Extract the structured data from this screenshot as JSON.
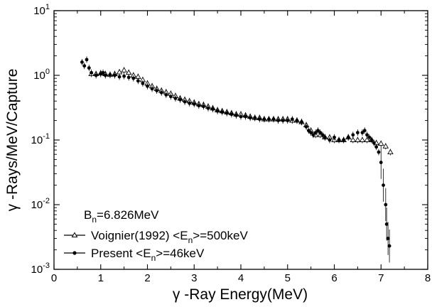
{
  "chart_data": {
    "type": "scatter",
    "xlabel": "γ -Ray Energy(MeV)",
    "ylabel": "γ -Rays/MeV/Capture",
    "xlim": [
      0,
      8
    ],
    "ylim": [
      0.001,
      10
    ],
    "yscale": "log",
    "grid": false,
    "legend_position": "bottom-left",
    "x_ticks": [
      0,
      1,
      2,
      3,
      4,
      5,
      6,
      7,
      8
    ],
    "x_tick_labels": [
      "0",
      "1",
      "2",
      "3",
      "4",
      "5",
      "6",
      "7",
      "8"
    ],
    "y_ticks": [
      0.001,
      0.01,
      0.1,
      1,
      10
    ],
    "y_tick_bases": [
      "10",
      "10",
      "10",
      "10",
      "10"
    ],
    "y_tick_exps": [
      "-3",
      "-2",
      "-1",
      "0",
      "1"
    ],
    "annotation": {
      "main": "B",
      "sub": "n",
      "rest": "=6.826MeV"
    },
    "series": [
      {
        "name": "Voignier(1992) <E_n>=500keV",
        "legend": {
          "pre": "Voignier(1992) <E",
          "sub": "n",
          "post": ">=500keV"
        },
        "marker": "triangle",
        "x": [
          0.8,
          0.9,
          1.0,
          1.1,
          1.2,
          1.3,
          1.4,
          1.5,
          1.6,
          1.7,
          1.8,
          1.9,
          2.0,
          2.1,
          2.2,
          2.3,
          2.4,
          2.5,
          2.6,
          2.7,
          2.8,
          2.9,
          3.0,
          3.1,
          3.2,
          3.3,
          3.4,
          3.5,
          3.6,
          3.7,
          3.8,
          3.9,
          4.0,
          4.1,
          4.2,
          4.3,
          4.4,
          4.5,
          4.6,
          4.7,
          4.8,
          4.9,
          5.0,
          5.1,
          5.2,
          5.3,
          5.4,
          5.5,
          5.6,
          5.7,
          5.8,
          5.9,
          6.0,
          6.1,
          6.2,
          6.3,
          6.4,
          6.5,
          6.6,
          6.7,
          6.8,
          6.9,
          7.0,
          7.1,
          7.2
        ],
        "y": [
          1.05,
          1.05,
          1.08,
          1.05,
          1.02,
          1.05,
          1.12,
          1.2,
          1.1,
          1.0,
          0.95,
          0.85,
          0.75,
          0.68,
          0.62,
          0.58,
          0.55,
          0.52,
          0.48,
          0.44,
          0.42,
          0.4,
          0.38,
          0.36,
          0.35,
          0.33,
          0.31,
          0.29,
          0.28,
          0.27,
          0.26,
          0.25,
          0.25,
          0.24,
          0.23,
          0.22,
          0.22,
          0.21,
          0.21,
          0.21,
          0.21,
          0.21,
          0.21,
          0.2,
          0.2,
          0.19,
          0.17,
          0.14,
          0.12,
          0.12,
          0.11,
          0.11,
          0.1,
          0.1,
          0.1,
          0.11,
          0.1,
          0.1,
          0.1,
          0.1,
          0.1,
          0.09,
          0.088,
          0.08,
          0.065
        ]
      },
      {
        "name": "Present <E_n>=46keV",
        "legend": {
          "pre": "Present <E",
          "sub": "n",
          "post": ">=46keV"
        },
        "marker": "circle",
        "x": [
          0.6,
          0.65,
          0.7,
          0.75,
          0.8,
          0.9,
          1.0,
          1.05,
          1.1,
          1.2,
          1.3,
          1.4,
          1.5,
          1.6,
          1.7,
          1.8,
          1.9,
          2.0,
          2.1,
          2.2,
          2.3,
          2.4,
          2.5,
          2.6,
          2.7,
          2.8,
          2.9,
          3.0,
          3.1,
          3.2,
          3.3,
          3.4,
          3.5,
          3.6,
          3.7,
          3.8,
          3.9,
          4.0,
          4.1,
          4.2,
          4.3,
          4.4,
          4.5,
          4.6,
          4.7,
          4.8,
          4.9,
          5.0,
          5.1,
          5.2,
          5.3,
          5.4,
          5.45,
          5.5,
          5.55,
          5.6,
          5.65,
          5.7,
          5.75,
          5.8,
          5.9,
          6.0,
          6.1,
          6.2,
          6.3,
          6.4,
          6.5,
          6.6,
          6.65,
          6.7,
          6.75,
          6.8,
          6.85,
          6.9,
          6.95,
          7.0,
          7.05,
          7.1,
          7.12,
          7.15,
          7.18
        ],
        "y": [
          1.6,
          1.4,
          1.75,
          1.3,
          1.1,
          1.0,
          1.05,
          1.1,
          1.0,
          1.02,
          1.0,
          0.95,
          0.97,
          0.93,
          0.9,
          0.82,
          0.75,
          0.68,
          0.62,
          0.58,
          0.54,
          0.5,
          0.47,
          0.44,
          0.42,
          0.39,
          0.37,
          0.36,
          0.34,
          0.33,
          0.31,
          0.3,
          0.28,
          0.27,
          0.26,
          0.25,
          0.24,
          0.23,
          0.23,
          0.22,
          0.22,
          0.21,
          0.21,
          0.21,
          0.21,
          0.2,
          0.2,
          0.2,
          0.21,
          0.2,
          0.19,
          0.16,
          0.14,
          0.13,
          0.12,
          0.13,
          0.14,
          0.13,
          0.12,
          0.11,
          0.1,
          0.11,
          0.1,
          0.1,
          0.11,
          0.12,
          0.13,
          0.13,
          0.14,
          0.12,
          0.11,
          0.1,
          0.09,
          0.078,
          0.065,
          0.045,
          0.02,
          0.01,
          0.005,
          0.003,
          0.0023
        ]
      }
    ]
  }
}
